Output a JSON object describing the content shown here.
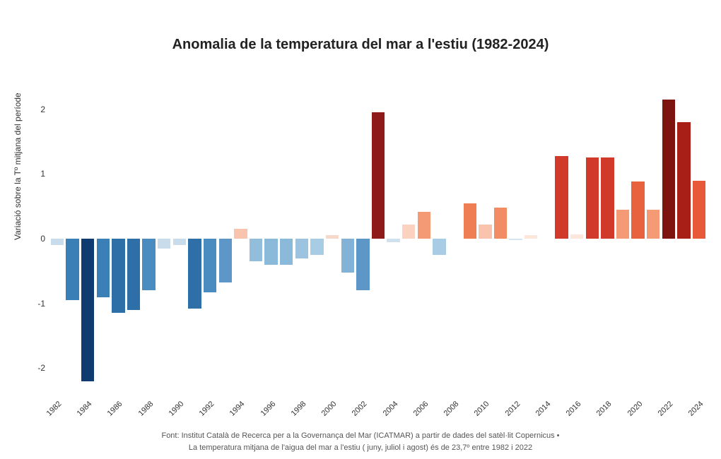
{
  "chart": {
    "type": "bar",
    "title": "Anomalia de la temperatura del mar a l'estiu (1982-2024)",
    "title_fontsize": 20,
    "ylabel": "Variació sobre la Tº mitjana del període",
    "ylim": [
      -2.4,
      2.4
    ],
    "yticks": [
      -2,
      -1,
      0,
      1,
      2
    ],
    "background_color": "#ffffff",
    "bar_gap_ratio": 0.15,
    "years": [
      1982,
      1983,
      1984,
      1985,
      1986,
      1987,
      1988,
      1989,
      1990,
      1991,
      1992,
      1993,
      1994,
      1995,
      1996,
      1997,
      1998,
      1999,
      2000,
      2001,
      2002,
      2003,
      2004,
      2005,
      2006,
      2007,
      2008,
      2009,
      2010,
      2011,
      2012,
      2013,
      2014,
      2015,
      2016,
      2017,
      2018,
      2019,
      2020,
      2021,
      2022,
      2023,
      2024
    ],
    "values": [
      -0.1,
      -0.95,
      -2.2,
      -0.9,
      -1.15,
      -1.1,
      -0.8,
      -0.15,
      -0.1,
      -1.08,
      -0.83,
      -0.68,
      0.15,
      -0.35,
      -0.4,
      -0.4,
      -0.3,
      -0.25,
      0.05,
      -0.52,
      -0.8,
      1.95,
      -0.05,
      0.22,
      0.42,
      -0.25,
      0.0,
      0.55,
      0.22,
      0.48,
      -0.02,
      0.05,
      0.0,
      1.28,
      0.07,
      1.25,
      1.25,
      0.45,
      0.88,
      0.45,
      2.15,
      1.8,
      0.9
    ],
    "colors": [
      "#c9dcec",
      "#3b7fb7",
      "#0f3b70",
      "#3b7fb7",
      "#2f6fa8",
      "#2f6fa8",
      "#4a8bc0",
      "#c9dcec",
      "#c9dcec",
      "#2f6fa8",
      "#4a8bc0",
      "#5c97c8",
      "#f8c4ae",
      "#92bedc",
      "#8bb9d9",
      "#8bb9d9",
      "#9cc4e0",
      "#a8cce4",
      "#f7d9cc",
      "#82b2d5",
      "#5c97c8",
      "#8e1a1a",
      "#cfe1ee",
      "#fbd2c0",
      "#f49b75",
      "#a8cce4",
      "#ffffff",
      "#f07e55",
      "#fac3ad",
      "#f28c64",
      "#d6e6f1",
      "#fde6db",
      "#ffffff",
      "#d13a2b",
      "#fde6db",
      "#d13a2b",
      "#d13a2b",
      "#f49b75",
      "#e9623f",
      "#f49b75",
      "#7d1410",
      "#a71f17",
      "#e8593a"
    ],
    "xtick_every": 2,
    "xtick_start": 1982
  },
  "footer": {
    "line1": "Font: Institut Català de Recerca per a la Governança del Mar (ICATMAR) a partir de dades del satèl·lit Copernicus •",
    "line2": "La temperatura mitjana de l'aigua del mar a l'estiu ( juny, juliol i agost) és de 23,7º entre 1982 i 2022"
  }
}
